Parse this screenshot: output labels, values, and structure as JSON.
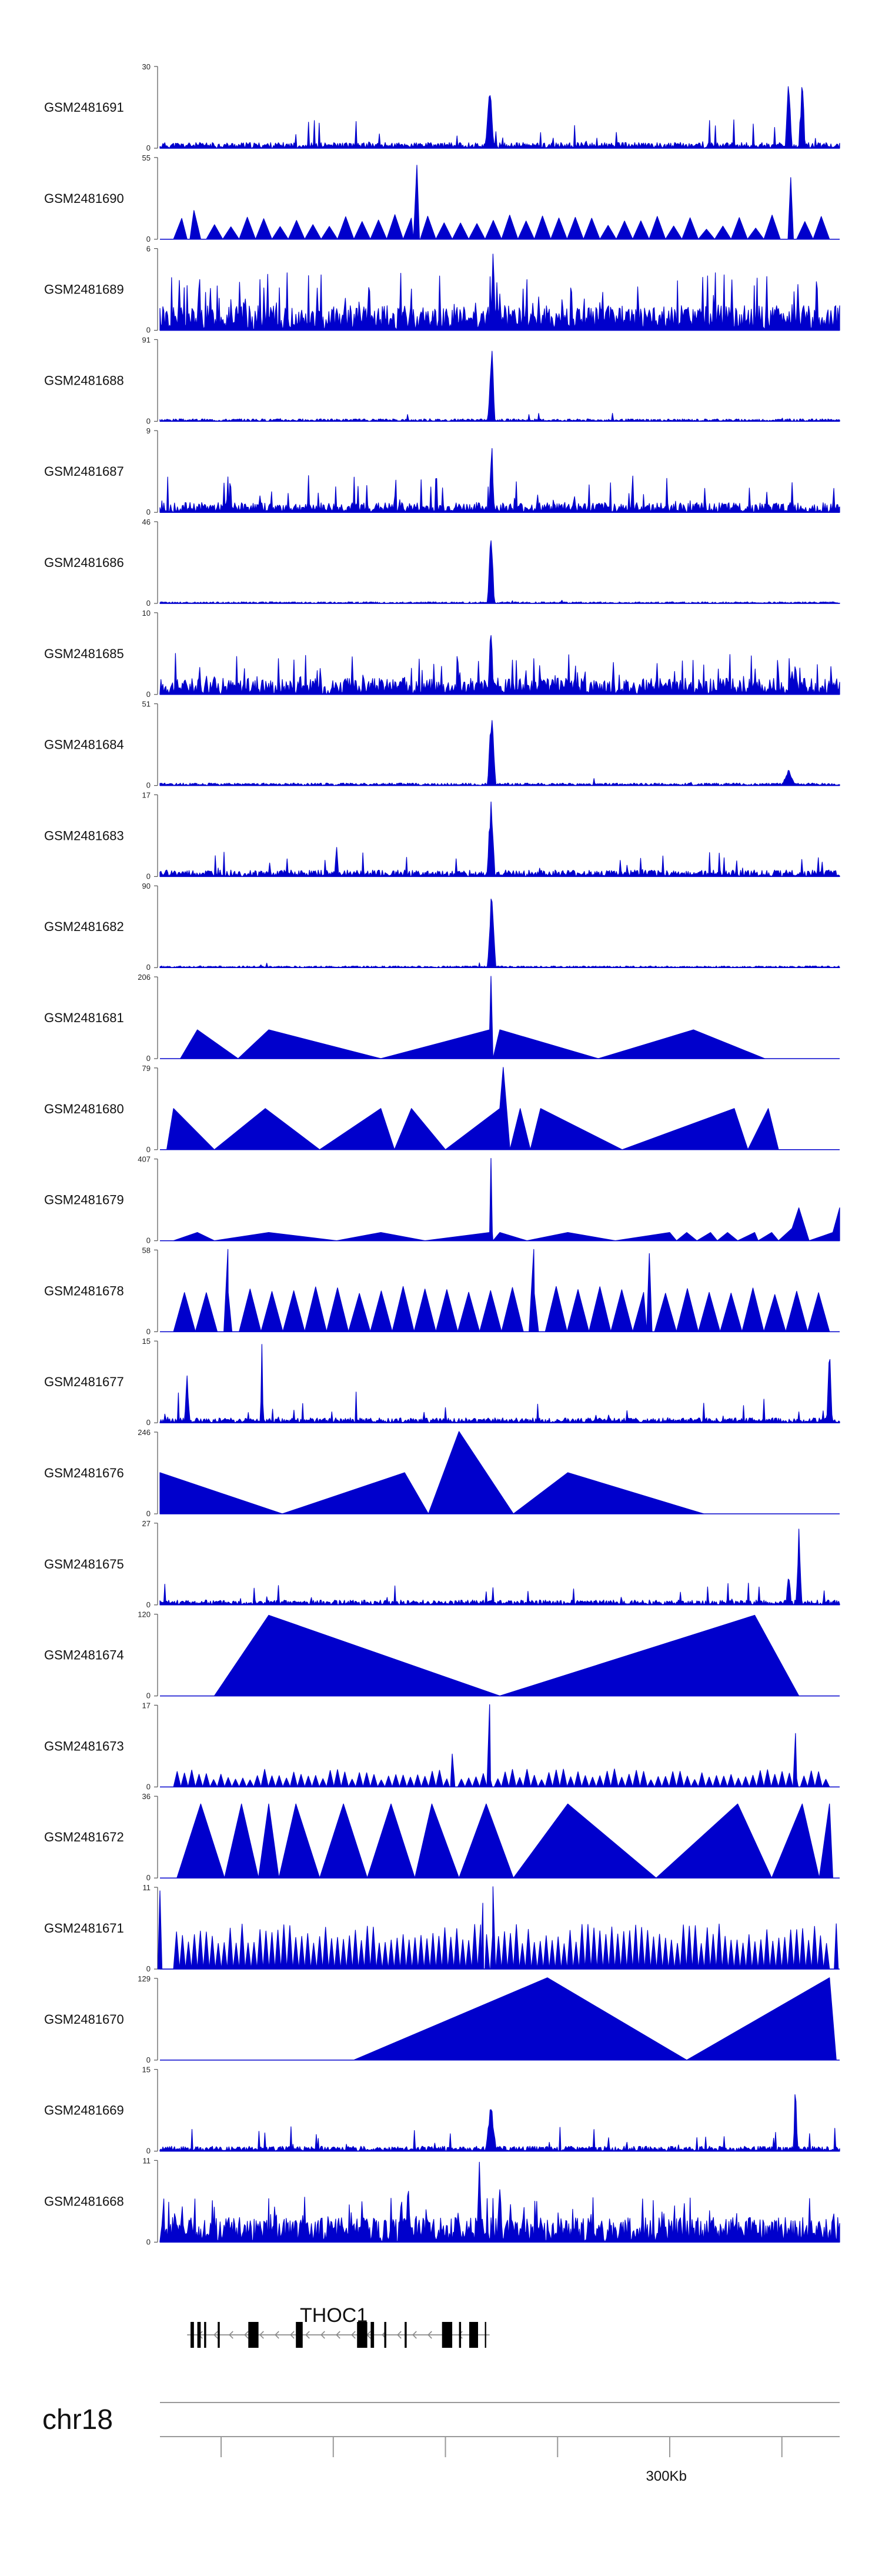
{
  "chart_data": {
    "type": "area",
    "color": "#0000cc",
    "axis_color": "#555555",
    "tracks": [
      {
        "name": "GSM2481691",
        "ymax": "30",
        "ymin": "0",
        "style": "noise",
        "seed": 11,
        "base": 0.07,
        "spikeProb": 0.03,
        "spikeAmp": 0.35,
        "peaks": [
          [
            0.485,
            0.9,
            0.006
          ],
          [
            0.925,
            0.9,
            0.005
          ],
          [
            0.945,
            1.0,
            0.004
          ]
        ]
      },
      {
        "name": "GSM2481690",
        "ymax": "55",
        "ymin": "0",
        "style": "tri",
        "seed": 12,
        "n": 40,
        "low": 0.12,
        "high": 0.3,
        "peaks": [
          [
            0.378,
            0.9,
            0.005
          ],
          [
            0.928,
            0.75,
            0.004
          ],
          [
            0.05,
            0.35,
            0.01
          ]
        ]
      },
      {
        "name": "GSM2481689",
        "ymax": "6",
        "ymin": "0",
        "style": "noise",
        "seed": 13,
        "base": 0.3,
        "spikeProb": 0.15,
        "spikeAmp": 0.7,
        "peaks": [
          [
            0.49,
            0.95,
            0.004
          ]
        ]
      },
      {
        "name": "GSM2481688",
        "ymax": "91",
        "ymin": "0",
        "style": "noise",
        "seed": 14,
        "base": 0.03,
        "spikeProb": 0.01,
        "spikeAmp": 0.1,
        "peaks": [
          [
            0.488,
            1.0,
            0.005
          ]
        ]
      },
      {
        "name": "GSM2481687",
        "ymax": "9",
        "ymin": "0",
        "style": "noise",
        "seed": 15,
        "base": 0.12,
        "spikeProb": 0.08,
        "spikeAmp": 0.45,
        "peaks": [
          [
            0.488,
            0.95,
            0.004
          ]
        ]
      },
      {
        "name": "GSM2481686",
        "ymax": "46",
        "ymin": "0",
        "style": "noise",
        "seed": 16,
        "base": 0.02,
        "spikeProb": 0.005,
        "spikeAmp": 0.1,
        "peaks": [
          [
            0.487,
            1.0,
            0.005
          ]
        ]
      },
      {
        "name": "GSM2481685",
        "ymax": "10",
        "ymin": "0",
        "style": "noise",
        "seed": 17,
        "base": 0.2,
        "spikeProb": 0.12,
        "spikeAmp": 0.5,
        "peaks": [
          [
            0.487,
            0.95,
            0.004
          ]
        ]
      },
      {
        "name": "GSM2481684",
        "ymax": "51",
        "ymin": "0",
        "style": "noise",
        "seed": 18,
        "base": 0.03,
        "spikeProb": 0.01,
        "spikeAmp": 0.1,
        "peaks": [
          [
            0.488,
            1.0,
            0.006
          ],
          [
            0.925,
            0.2,
            0.01
          ]
        ]
      },
      {
        "name": "GSM2481683",
        "ymax": "17",
        "ymin": "0",
        "style": "noise",
        "seed": 19,
        "base": 0.08,
        "spikeProb": 0.05,
        "spikeAmp": 0.3,
        "peaks": [
          [
            0.487,
            1.0,
            0.006
          ],
          [
            0.26,
            0.45,
            0.003
          ]
        ]
      },
      {
        "name": "GSM2481682",
        "ymax": "90",
        "ymin": "0",
        "style": "noise",
        "seed": 20,
        "base": 0.02,
        "spikeProb": 0.005,
        "spikeAmp": 0.06,
        "peaks": [
          [
            0.488,
            1.0,
            0.006
          ]
        ]
      },
      {
        "name": "GSM2481681",
        "ymax": "206",
        "ymin": "0",
        "style": "pts",
        "pts": [
          [
            0.03,
            0
          ],
          [
            0.055,
            0.35
          ],
          [
            0.115,
            0
          ],
          [
            0.16,
            0.35
          ],
          [
            0.325,
            0
          ],
          [
            0.485,
            0.35
          ],
          [
            0.487,
            1.0
          ],
          [
            0.489,
            0.35
          ],
          [
            0.49,
            0
          ],
          [
            0.5,
            0.35
          ],
          [
            0.645,
            0
          ],
          [
            0.785,
            0.35
          ],
          [
            0.89,
            0
          ]
        ]
      },
      {
        "name": "GSM2481680",
        "ymax": "79",
        "ymin": "0",
        "style": "pts",
        "pts": [
          [
            0.01,
            0
          ],
          [
            0.02,
            0.5
          ],
          [
            0.08,
            0
          ],
          [
            0.155,
            0.5
          ],
          [
            0.235,
            0
          ],
          [
            0.325,
            0.5
          ],
          [
            0.345,
            0
          ],
          [
            0.37,
            0.5
          ],
          [
            0.42,
            0
          ],
          [
            0.5,
            0.5
          ],
          [
            0.505,
            1.0
          ],
          [
            0.515,
            0
          ],
          [
            0.53,
            0.5
          ],
          [
            0.545,
            0
          ],
          [
            0.56,
            0.5
          ],
          [
            0.68,
            0
          ],
          [
            0.845,
            0.5
          ],
          [
            0.865,
            0
          ],
          [
            0.895,
            0.5
          ],
          [
            0.91,
            0
          ],
          [
            0.955,
            0
          ]
        ]
      },
      {
        "name": "GSM2481679",
        "ymax": "407",
        "ymin": "0",
        "style": "pts",
        "pts": [
          [
            0.02,
            0
          ],
          [
            0.055,
            0.1
          ],
          [
            0.08,
            0
          ],
          [
            0.16,
            0.1
          ],
          [
            0.26,
            0
          ],
          [
            0.325,
            0.1
          ],
          [
            0.39,
            0
          ],
          [
            0.485,
            0.1
          ],
          [
            0.487,
            1.0
          ],
          [
            0.489,
            0.1
          ],
          [
            0.49,
            0
          ],
          [
            0.5,
            0.1
          ],
          [
            0.54,
            0
          ],
          [
            0.6,
            0.1
          ],
          [
            0.67,
            0
          ],
          [
            0.75,
            0.1
          ],
          [
            0.76,
            0
          ],
          [
            0.775,
            0.1
          ],
          [
            0.79,
            0
          ],
          [
            0.81,
            0.1
          ],
          [
            0.82,
            0
          ],
          [
            0.835,
            0.1
          ],
          [
            0.85,
            0
          ],
          [
            0.875,
            0.1
          ],
          [
            0.88,
            0
          ],
          [
            0.9,
            0.1
          ],
          [
            0.91,
            0
          ],
          [
            0.93,
            0.15
          ],
          [
            0.94,
            0.4
          ],
          [
            0.955,
            0
          ],
          [
            0.99,
            0.1
          ],
          [
            1.0,
            0.4
          ],
          [
            1.0,
            0
          ]
        ]
      },
      {
        "name": "GSM2481678",
        "ymax": "58",
        "ymin": "0",
        "style": "tri",
        "seed": 21,
        "n": 30,
        "low": 0.45,
        "high": 0.55,
        "peaks": [
          [
            0.1,
            1.0,
            0.006
          ],
          [
            0.55,
            1.0,
            0.007
          ],
          [
            0.72,
            0.95,
            0.004
          ]
        ]
      },
      {
        "name": "GSM2481677",
        "ymax": "15",
        "ymin": "0",
        "style": "noise",
        "seed": 22,
        "base": 0.06,
        "spikeProb": 0.04,
        "spikeAmp": 0.4,
        "peaks": [
          [
            0.04,
            0.6,
            0.004
          ],
          [
            0.15,
            1.0,
            0.002
          ],
          [
            0.985,
            1.0,
            0.004
          ]
        ]
      },
      {
        "name": "GSM2481676",
        "ymax": "246",
        "ymin": "0",
        "style": "pts",
        "pts": [
          [
            0.0,
            0.5
          ],
          [
            0.18,
            0
          ],
          [
            0.36,
            0.5
          ],
          [
            0.395,
            0
          ],
          [
            0.44,
            1.0
          ],
          [
            0.52,
            0
          ],
          [
            0.6,
            0.5
          ],
          [
            0.8,
            0
          ]
        ]
      },
      {
        "name": "GSM2481675",
        "ymax": "27",
        "ymin": "0",
        "style": "noise",
        "seed": 23,
        "base": 0.06,
        "spikeProb": 0.03,
        "spikeAmp": 0.3,
        "peaks": [
          [
            0.94,
            1.0,
            0.004
          ],
          [
            0.925,
            0.45,
            0.004
          ]
        ]
      },
      {
        "name": "GSM2481674",
        "ymax": "120",
        "ymin": "0",
        "style": "pts",
        "pts": [
          [
            0.08,
            0
          ],
          [
            0.16,
            0.98
          ],
          [
            0.5,
            0
          ],
          [
            0.875,
            0.98
          ],
          [
            0.94,
            0
          ]
        ]
      },
      {
        "name": "GSM2481673",
        "ymax": "17",
        "ymin": "0",
        "style": "tri",
        "seed": 24,
        "n": 90,
        "low": 0.08,
        "high": 0.22,
        "peaks": [
          [
            0.485,
            1.0,
            0.004
          ],
          [
            0.43,
            0.4,
            0.004
          ],
          [
            0.935,
            0.65,
            0.004
          ]
        ]
      },
      {
        "name": "GSM2481672",
        "ymax": "36",
        "ymin": "0",
        "style": "pts",
        "pts": [
          [
            0.025,
            0
          ],
          [
            0.06,
            0.9
          ],
          [
            0.095,
            0
          ],
          [
            0.12,
            0.9
          ],
          [
            0.145,
            0
          ],
          [
            0.16,
            0.9
          ],
          [
            0.175,
            0
          ],
          [
            0.2,
            0.9
          ],
          [
            0.235,
            0
          ],
          [
            0.27,
            0.9
          ],
          [
            0.305,
            0
          ],
          [
            0.34,
            0.9
          ],
          [
            0.375,
            0
          ],
          [
            0.4,
            0.9
          ],
          [
            0.44,
            0
          ],
          [
            0.48,
            0.9
          ],
          [
            0.52,
            0
          ],
          [
            0.6,
            0.9
          ],
          [
            0.73,
            0
          ],
          [
            0.85,
            0.9
          ],
          [
            0.9,
            0
          ],
          [
            0.945,
            0.9
          ],
          [
            0.97,
            0
          ],
          [
            0.985,
            0.9
          ],
          [
            0.99,
            0
          ]
        ]
      },
      {
        "name": "GSM2481671",
        "ymax": "11",
        "ymin": "0",
        "style": "tri",
        "seed": 25,
        "n": 110,
        "low": 0.3,
        "high": 0.55,
        "peaks": [
          [
            0.0,
            0.95,
            0.003
          ],
          [
            0.49,
            1.0,
            0.004
          ],
          [
            0.475,
            0.8,
            0.003
          ],
          [
            0.995,
            0.55,
            0.003
          ]
        ]
      },
      {
        "name": "GSM2481670",
        "ymax": "129",
        "ymin": "0",
        "style": "pts",
        "pts": [
          [
            0.285,
            0
          ],
          [
            0.57,
            1.0
          ],
          [
            0.775,
            0
          ],
          [
            0.985,
            1.0
          ],
          [
            0.995,
            0
          ]
        ]
      },
      {
        "name": "GSM2481669",
        "ymax": "15",
        "ymin": "0",
        "style": "noise",
        "seed": 26,
        "base": 0.06,
        "spikeProb": 0.04,
        "spikeAmp": 0.3,
        "peaks": [
          [
            0.487,
            0.6,
            0.008
          ],
          [
            0.935,
            1.0,
            0.003
          ]
        ]
      },
      {
        "name": "GSM2481668",
        "ymax": "11",
        "ymin": "0",
        "style": "noise",
        "seed": 27,
        "base": 0.3,
        "spikeProb": 0.15,
        "spikeAmp": 0.55,
        "peaks": [
          [
            0.47,
            1.0,
            0.004
          ],
          [
            0.365,
            0.8,
            0.004
          ],
          [
            0.5,
            0.85,
            0.004
          ]
        ]
      }
    ],
    "gene": {
      "name": "THOC1",
      "start": 0.04,
      "end": 0.485,
      "strand": "-",
      "exons": [
        [
          0.045,
          0.05
        ],
        [
          0.055,
          0.06
        ],
        [
          0.065,
          0.068
        ],
        [
          0.085,
          0.088
        ],
        [
          0.13,
          0.145
        ],
        [
          0.14,
          0.142
        ],
        [
          0.2,
          0.21
        ],
        [
          0.29,
          0.305
        ],
        [
          0.31,
          0.315
        ],
        [
          0.33,
          0.333
        ],
        [
          0.36,
          0.363
        ],
        [
          0.415,
          0.43
        ],
        [
          0.44,
          0.443
        ],
        [
          0.455,
          0.468
        ],
        [
          0.478,
          0.48
        ]
      ]
    },
    "chromosome": "chr18",
    "scale_label": "300Kb",
    "scale_label_pos": 0.745,
    "ticks": [
      0.09,
      0.255,
      0.42,
      0.585,
      0.75,
      0.915
    ]
  }
}
